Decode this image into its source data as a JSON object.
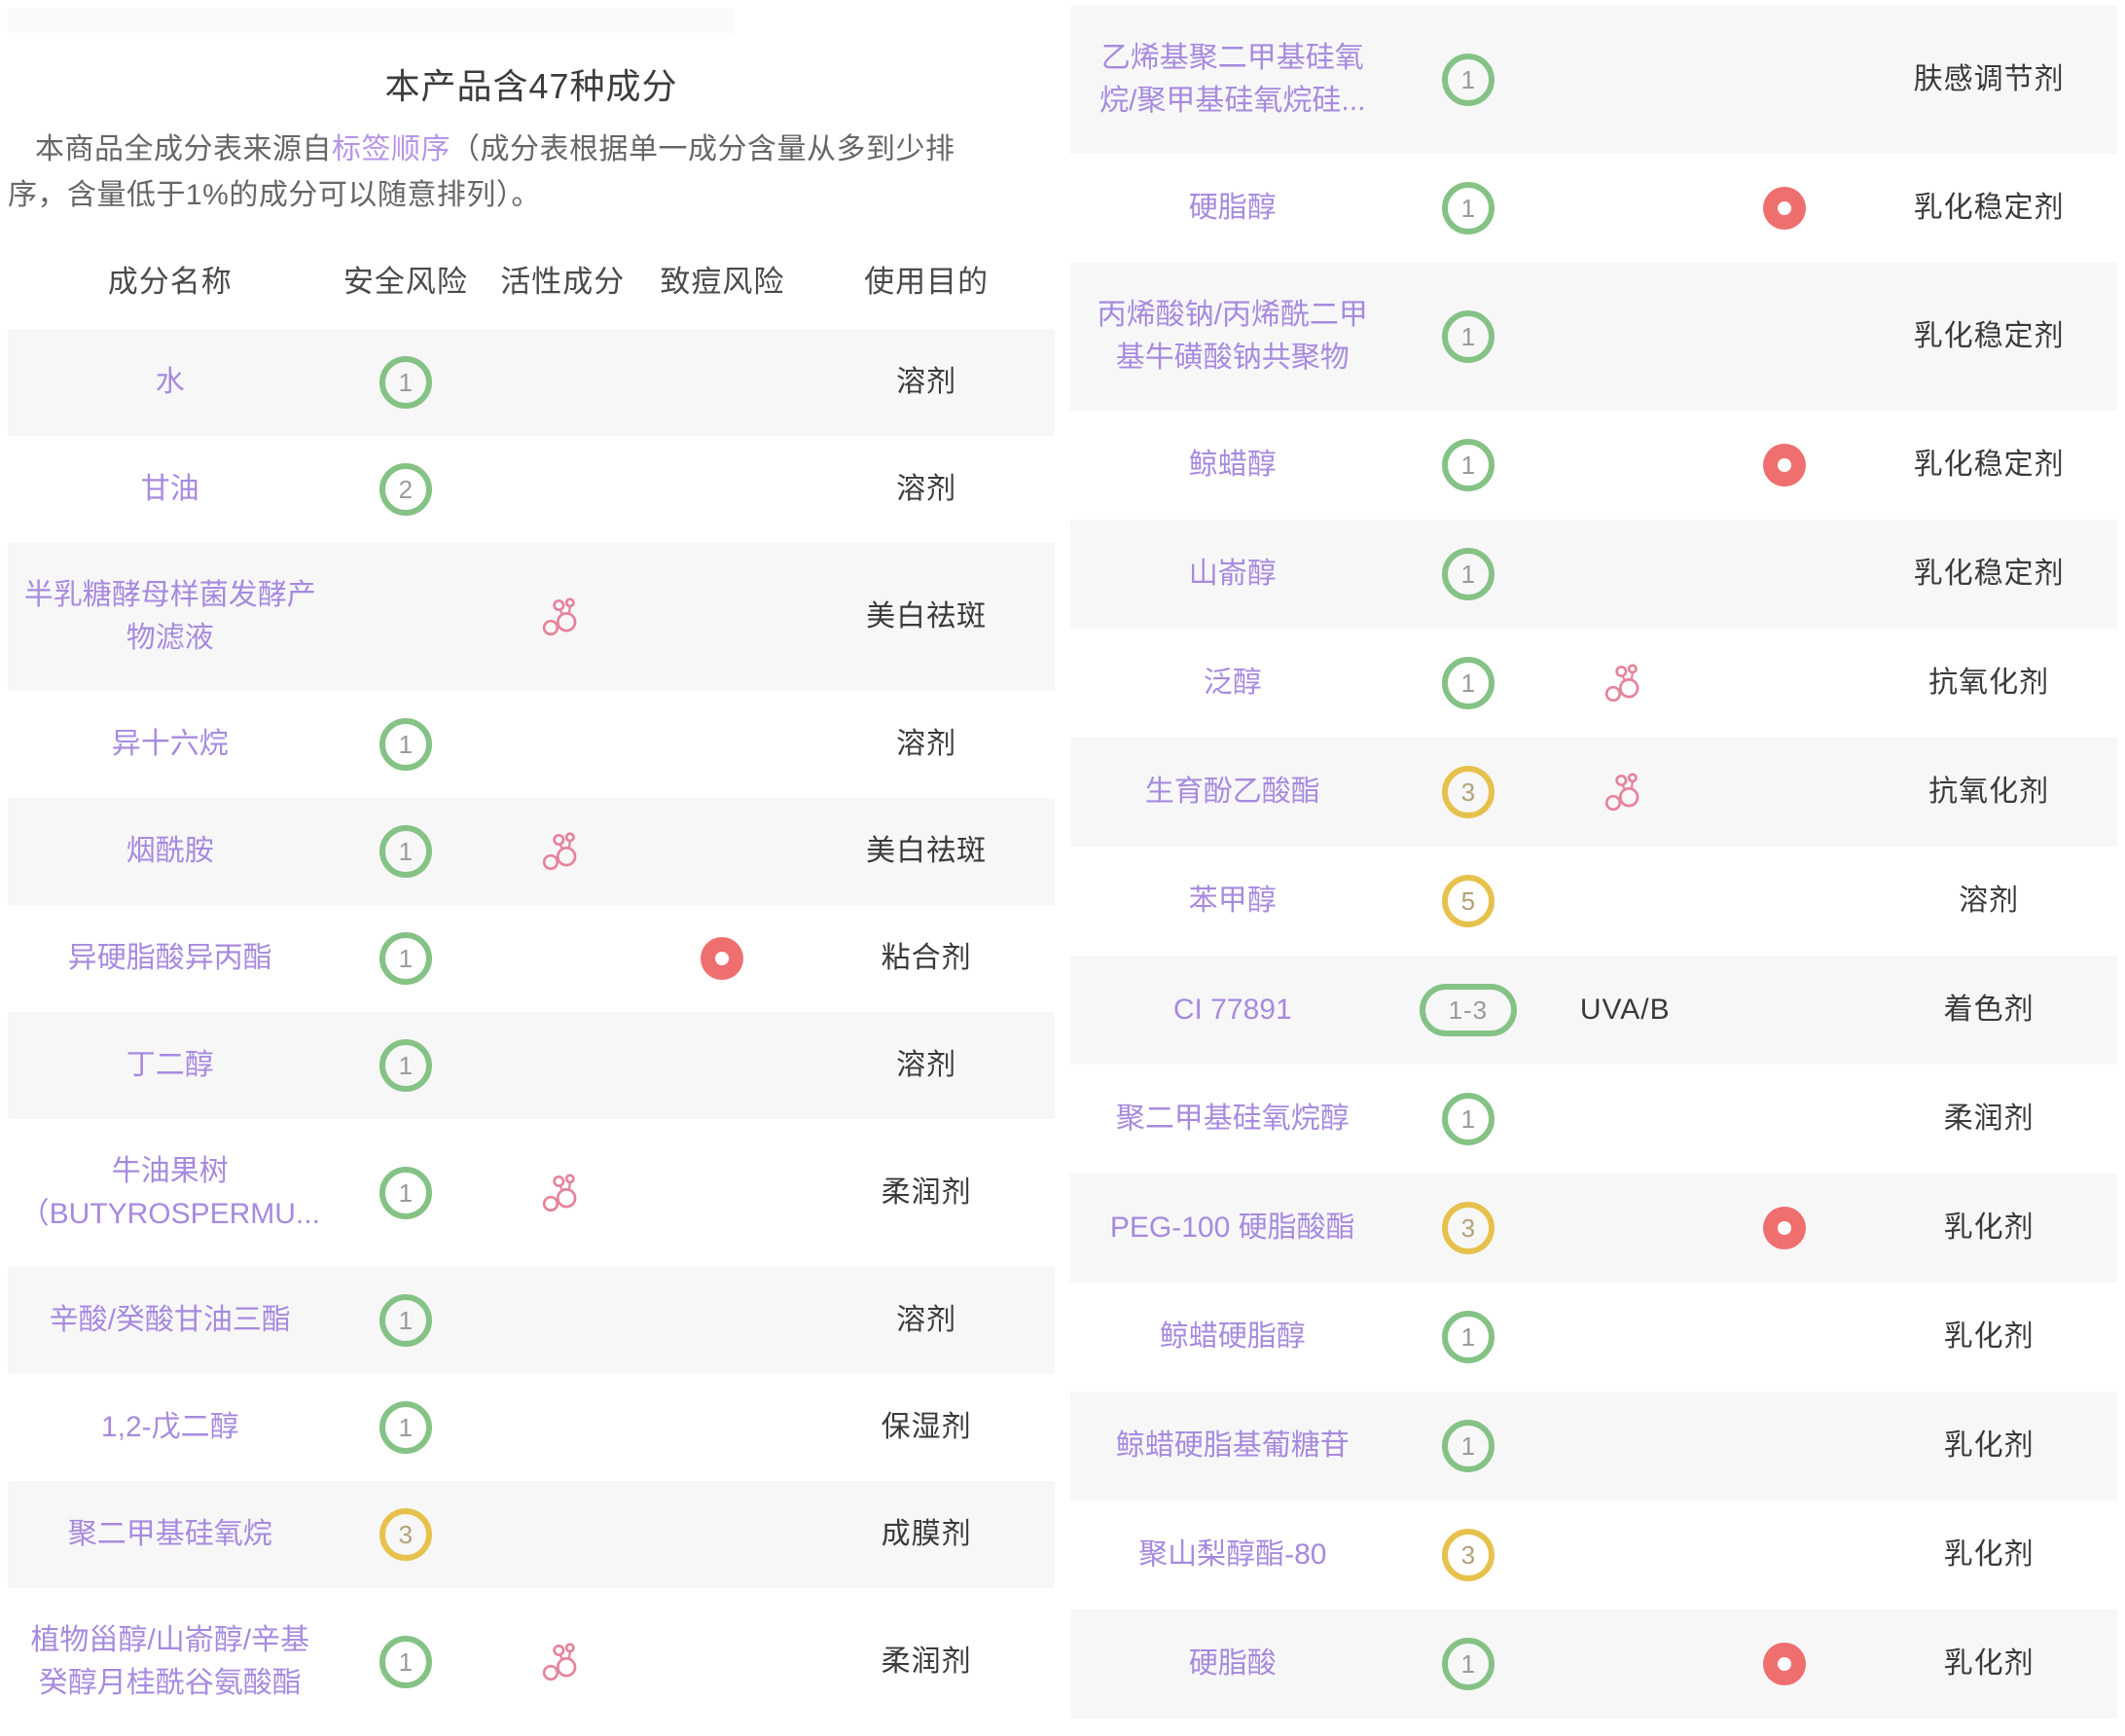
{
  "header": {
    "title": "本产品含47种成分",
    "desc_prefix": "本商品全成分表来源自",
    "desc_link": "标签顺序",
    "desc_suffix": "（成分表根据单一成分含量从多到少排序，含量低于1%的成分可以随意排列）。"
  },
  "table": {
    "columns": [
      "成分名称",
      "安全风险",
      "活性成分",
      "致痘风险",
      "使用目的"
    ]
  },
  "colors": {
    "ingredient_link": "#a78ade",
    "desc_link": "#b795e8",
    "safety_low_green": "#85c285",
    "safety_mid_yellow": "#e6c14c",
    "acne_risk_red": "#ef6f6f",
    "active_icon_pink": "#e5849a",
    "row_stripe": "#f7f7f8"
  },
  "left_rows": [
    {
      "name": "水",
      "safety": "1",
      "safety_color": "green",
      "purpose": "溶剂"
    },
    {
      "name": "甘油",
      "safety": "2",
      "safety_color": "green",
      "purpose": "溶剂"
    },
    {
      "name": "半乳糖酵母样菌发酵产",
      "name2": "物滤液",
      "safety": null,
      "active": true,
      "purpose": "美白祛斑"
    },
    {
      "name": "异十六烷",
      "safety": "1",
      "safety_color": "green",
      "purpose": "溶剂"
    },
    {
      "name": "烟酰胺",
      "safety": "1",
      "safety_color": "green",
      "active": true,
      "purpose": "美白祛斑"
    },
    {
      "name": "异硬脂酸异丙酯",
      "safety": "1",
      "safety_color": "green",
      "acne": true,
      "purpose": "粘合剂"
    },
    {
      "name": "丁二醇",
      "safety": "1",
      "safety_color": "green",
      "purpose": "溶剂"
    },
    {
      "name": "牛油果树",
      "name2": "（BUTYROSPERMU...",
      "safety": "1",
      "safety_color": "green",
      "active": true,
      "purpose": "柔润剂"
    },
    {
      "name": "辛酸/癸酸甘油三酯",
      "safety": "1",
      "safety_color": "green",
      "purpose": "溶剂"
    },
    {
      "name": "1,2-戊二醇",
      "safety": "1",
      "safety_color": "green",
      "purpose": "保湿剂"
    },
    {
      "name": "聚二甲基硅氧烷",
      "safety": "3",
      "safety_color": "yellow",
      "purpose": "成膜剂"
    },
    {
      "name": "植物甾醇/山嵛醇/辛基",
      "name2": "癸醇月桂酰谷氨酸酯",
      "safety": "1",
      "safety_color": "green",
      "active": true,
      "purpose": "柔润剂"
    }
  ],
  "right_rows": [
    {
      "name": "乙烯基聚二甲基硅氧",
      "name2": "烷/聚甲基硅氧烷硅...",
      "safety": "1",
      "safety_color": "green",
      "purpose": "肤感调节剂"
    },
    {
      "name": "硬脂醇",
      "safety": "1",
      "safety_color": "green",
      "acne": true,
      "purpose": "乳化稳定剂"
    },
    {
      "name": "丙烯酸钠/丙烯酰二甲",
      "name2": "基牛磺酸钠共聚物",
      "safety": "1",
      "safety_color": "green",
      "purpose": "乳化稳定剂"
    },
    {
      "name": "鲸蜡醇",
      "safety": "1",
      "safety_color": "green",
      "acne": true,
      "purpose": "乳化稳定剂"
    },
    {
      "name": "山嵛醇",
      "safety": "1",
      "safety_color": "green",
      "purpose": "乳化稳定剂"
    },
    {
      "name": "泛醇",
      "safety": "1",
      "safety_color": "green",
      "active": true,
      "purpose": "抗氧化剂"
    },
    {
      "name": "生育酚乙酸酯",
      "safety": "3",
      "safety_color": "yellow",
      "active": true,
      "purpose": "抗氧化剂"
    },
    {
      "name": "苯甲醇",
      "safety": "5",
      "safety_color": "yellow",
      "purpose": "溶剂"
    },
    {
      "name": "CI 77891",
      "safety": "1-3",
      "safety_color": "green",
      "safety_pill": true,
      "active_text": "UVA/B",
      "purpose": "着色剂"
    },
    {
      "name": "聚二甲基硅氧烷醇",
      "safety": "1",
      "safety_color": "green",
      "purpose": "柔润剂"
    },
    {
      "name": "PEG-100 硬脂酸酯",
      "safety": "3",
      "safety_color": "yellow",
      "acne": true,
      "purpose": "乳化剂"
    },
    {
      "name": "鲸蜡硬脂醇",
      "safety": "1",
      "safety_color": "green",
      "purpose": "乳化剂"
    },
    {
      "name": "鲸蜡硬脂基葡糖苷",
      "safety": "1",
      "safety_color": "green",
      "purpose": "乳化剂"
    },
    {
      "name": "聚山梨醇酯-80",
      "safety": "3",
      "safety_color": "yellow",
      "purpose": "乳化剂"
    },
    {
      "name": "硬脂酸",
      "safety": "1",
      "safety_color": "green",
      "acne": true,
      "purpose": "乳化剂"
    }
  ]
}
